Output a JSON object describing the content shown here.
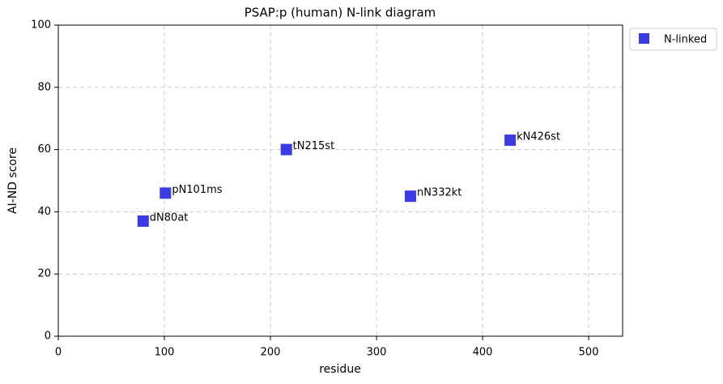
{
  "chart_data": {
    "type": "scatter",
    "title": "PSAP:p (human) N-link diagram",
    "x_label": "residue",
    "y_label": "AI-ND score",
    "series": [
      {
        "name": "N-linked",
        "color": "#3b3be6",
        "x": [
          80,
          101,
          215,
          332,
          426
        ],
        "values": [
          37,
          46,
          60,
          45,
          63
        ],
        "labels": [
          "dN80at",
          "pN101ms",
          "tN215st",
          "nN332kt",
          "kN426st"
        ]
      }
    ],
    "xlim": [
      0,
      532
    ],
    "xticks": [
      0,
      100,
      200,
      300,
      400,
      500
    ],
    "ylim": [
      0,
      100
    ],
    "yticks": [
      0,
      20,
      40,
      60,
      80,
      100
    ],
    "grid": true,
    "legend": "outside-upper-right"
  }
}
